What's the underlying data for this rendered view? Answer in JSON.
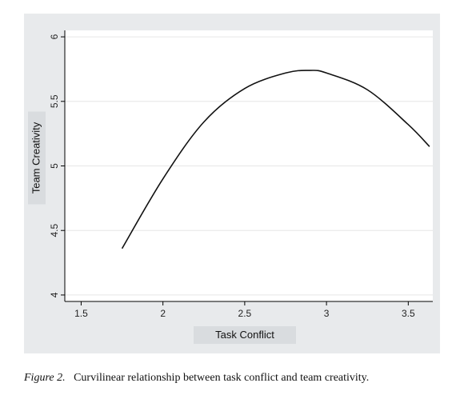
{
  "chart_data": {
    "type": "line",
    "title": "",
    "xlabel": "Task Conflict",
    "ylabel": "Team Creativity",
    "xlim": [
      1.4,
      3.65
    ],
    "ylim": [
      3.95,
      6.05
    ],
    "xticks": [
      1.5,
      2,
      2.5,
      3,
      3.5
    ],
    "xtick_labels": [
      "1.5",
      "2",
      "2.5",
      "3",
      "3.5"
    ],
    "yticks": [
      4,
      4.5,
      5,
      5.5,
      6
    ],
    "ytick_labels": [
      "4",
      "4.5",
      "5",
      "5.5",
      "6"
    ],
    "grid": "horizontal",
    "legend": "none",
    "series": [
      {
        "x": [
          1.75,
          2.0,
          2.25,
          2.5,
          2.75,
          2.9,
          3.0,
          3.25,
          3.5,
          3.63
        ],
        "y": [
          4.36,
          4.9,
          5.34,
          5.6,
          5.72,
          5.74,
          5.72,
          5.59,
          5.32,
          5.15
        ]
      }
    ]
  },
  "caption": {
    "label": "Figure 2.",
    "text": "Curvilinear relationship between task conflict and team creativity."
  },
  "colors": {
    "panel_bg": "#e8eaec",
    "plot_bg": "#ffffff",
    "curve": "#111111",
    "grid": "#e6e6e6"
  }
}
